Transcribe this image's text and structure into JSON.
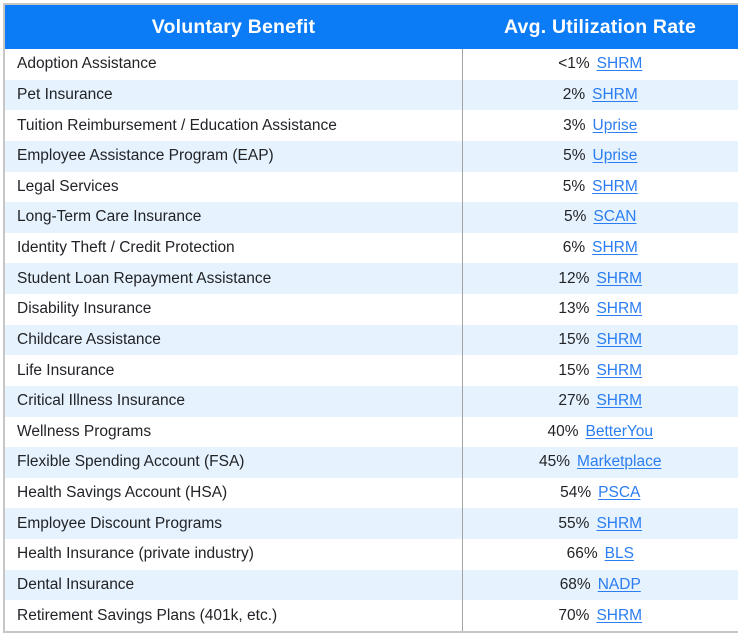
{
  "chart_data": {
    "type": "table",
    "columns": [
      {
        "label": "Voluntary Benefit"
      },
      {
        "label": "Avg. Utilization Rate"
      }
    ],
    "rows": [
      {
        "benefit": "Adoption Assistance",
        "rate": "<1%",
        "source": "SHRM"
      },
      {
        "benefit": "Pet Insurance",
        "rate": "2%",
        "source": "SHRM"
      },
      {
        "benefit": "Tuition Reimbursement / Education Assistance",
        "rate": "3%",
        "source": "Uprise"
      },
      {
        "benefit": "Employee Assistance Program (EAP)",
        "rate": "5%",
        "source": "Uprise"
      },
      {
        "benefit": "Legal Services",
        "rate": "5%",
        "source": "SHRM"
      },
      {
        "benefit": "Long-Term Care Insurance",
        "rate": "5%",
        "source": "SCAN"
      },
      {
        "benefit": "Identity Theft / Credit Protection",
        "rate": "6%",
        "source": "SHRM"
      },
      {
        "benefit": "Student Loan Repayment Assistance",
        "rate": "12%",
        "source": "SHRM"
      },
      {
        "benefit": "Disability Insurance",
        "rate": "13%",
        "source": "SHRM"
      },
      {
        "benefit": "Childcare Assistance",
        "rate": "15%",
        "source": "SHRM"
      },
      {
        "benefit": "Life Insurance",
        "rate": "15%",
        "source": "SHRM"
      },
      {
        "benefit": "Critical Illness Insurance",
        "rate": "27%",
        "source": "SHRM"
      },
      {
        "benefit": "Wellness Programs",
        "rate": "40%",
        "source": "BetterYou"
      },
      {
        "benefit": "Flexible Spending Account (FSA)",
        "rate": "45%",
        "source": "Marketplace"
      },
      {
        "benefit": "Health Savings Account (HSA)",
        "rate": "54%",
        "source": "PSCA"
      },
      {
        "benefit": "Employee Discount Programs",
        "rate": "55%",
        "source": "SHRM"
      },
      {
        "benefit": "Health Insurance (private industry)",
        "rate": "66%",
        "source": "BLS"
      },
      {
        "benefit": "Dental Insurance",
        "rate": "68%",
        "source": "NADP"
      },
      {
        "benefit": "Retirement Savings Plans (401k, etc.)",
        "rate": "70%",
        "source": "SHRM"
      }
    ]
  },
  "colors": {
    "header_bg": "#0B7CF6",
    "header_text": "#FFFFFF",
    "row_stripe": "#E6F2FD",
    "body_text": "#212327",
    "link": "#2A7DF2",
    "outer_border": "#C6C6C6",
    "column_divider": "#A3A3A3"
  }
}
